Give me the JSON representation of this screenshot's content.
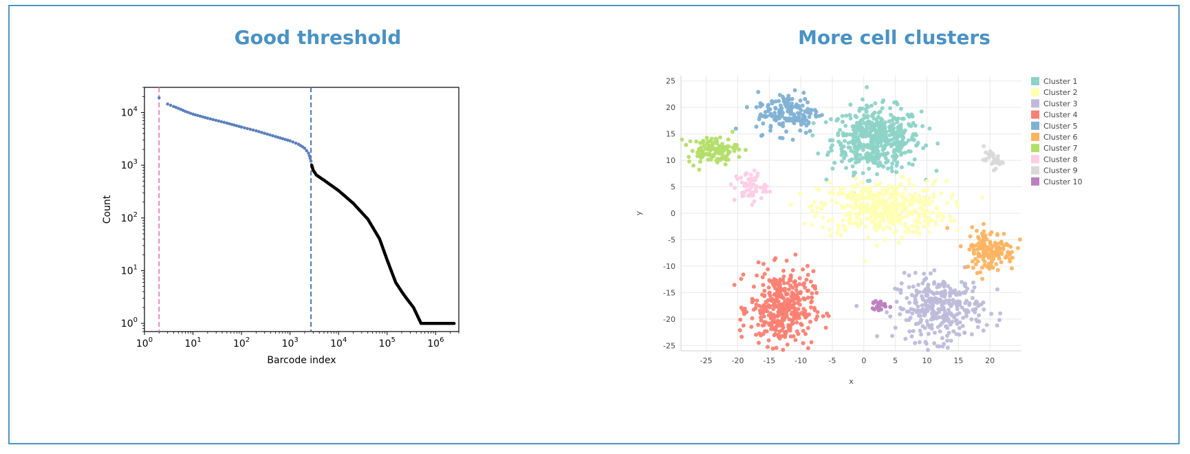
{
  "panels": {
    "left_title": "Good threshold",
    "right_title": "More cell clusters"
  },
  "colors": {
    "frame": "#4d94c4",
    "title": "#4a92c4",
    "cell_barcodes": "#5b80bd",
    "background_barcodes": "#000000",
    "left_threshold_line": "#e67fb5",
    "right_threshold_line": "#3b6ea5"
  },
  "chart_data": [
    {
      "type": "scatter",
      "title": "Good threshold",
      "xlabel": "Barcode index",
      "ylabel": "Count",
      "xscale": "log",
      "yscale": "log",
      "xlim": [
        1,
        3000000
      ],
      "ylim": [
        0.7,
        30000
      ],
      "x_ticks": [
        {
          "base": "10",
          "exp": "0",
          "value": 1
        },
        {
          "base": "10",
          "exp": "1",
          "value": 10
        },
        {
          "base": "10",
          "exp": "2",
          "value": 100
        },
        {
          "base": "10",
          "exp": "3",
          "value": 1000
        },
        {
          "base": "10",
          "exp": "4",
          "value": 10000
        },
        {
          "base": "10",
          "exp": "5",
          "value": 100000
        },
        {
          "base": "10",
          "exp": "6",
          "value": 1000000
        }
      ],
      "y_ticks": [
        {
          "base": "10",
          "exp": "0",
          "value": 1
        },
        {
          "base": "10",
          "exp": "1",
          "value": 10
        },
        {
          "base": "10",
          "exp": "2",
          "value": 100
        },
        {
          "base": "10",
          "exp": "3",
          "value": 1000
        },
        {
          "base": "10",
          "exp": "4",
          "value": 10000
        }
      ],
      "thresholds": [
        {
          "x": 2,
          "style": "dashed",
          "color": "#e67fb5"
        },
        {
          "x": 2700,
          "style": "dashed",
          "color": "#3b6ea5"
        }
      ],
      "series": [
        {
          "color": "#5b80bd",
          "points": [
            [
              2,
              19000
            ],
            [
              3,
              14500
            ],
            [
              4,
              13000
            ],
            [
              5,
              12000
            ],
            [
              7,
              10500
            ],
            [
              10,
              9300
            ],
            [
              20,
              7800
            ],
            [
              50,
              6300
            ],
            [
              100,
              5300
            ],
            [
              200,
              4500
            ],
            [
              500,
              3500
            ],
            [
              1000,
              2900
            ],
            [
              1500,
              2500
            ],
            [
              2000,
              2100
            ],
            [
              2400,
              1700
            ],
            [
              2700,
              1200
            ]
          ]
        },
        {
          "color": "#000000",
          "points": [
            [
              2800,
              1000
            ],
            [
              3000,
              800
            ],
            [
              3500,
              650
            ],
            [
              5000,
              520
            ],
            [
              10000,
              330
            ],
            [
              20000,
              190
            ],
            [
              40000,
              95
            ],
            [
              70000,
              40
            ],
            [
              100000,
              16
            ],
            [
              150000,
              6
            ],
            [
              200000,
              4
            ],
            [
              250000,
              3
            ],
            [
              350000,
              2
            ],
            [
              500000,
              1
            ],
            [
              2400000,
              1
            ]
          ]
        }
      ]
    },
    {
      "type": "scatter",
      "xlabel": "x",
      "ylabel": "y",
      "xlim": [
        -29,
        25
      ],
      "ylim": [
        -26,
        26
      ],
      "x_ticks": [
        -25,
        -20,
        -15,
        -10,
        -5,
        0,
        5,
        10,
        15,
        20
      ],
      "y_ticks": [
        25,
        20,
        15,
        10,
        5,
        0,
        -5,
        -10,
        -15,
        -20,
        -25
      ],
      "grid": true,
      "legend_position": "top-right",
      "series": [
        {
          "name": "Cluster 1",
          "color": "#8dd3c7",
          "center": [
            2,
            14
          ],
          "spread": [
            7,
            6
          ],
          "count": 480
        },
        {
          "name": "Cluster 2",
          "color": "#ffffb3",
          "center": [
            3,
            1
          ],
          "spread": [
            10,
            5
          ],
          "count": 450
        },
        {
          "name": "Cluster 3",
          "color": "#bebada",
          "center": [
            12,
            -18
          ],
          "spread": [
            7,
            6
          ],
          "count": 320
        },
        {
          "name": "Cluster 4",
          "color": "#fb8072",
          "center": [
            -13,
            -18
          ],
          "spread": [
            5,
            7
          ],
          "count": 380
        },
        {
          "name": "Cluster 5",
          "color": "#80b1d3",
          "center": [
            -12,
            19
          ],
          "spread": [
            5,
            4
          ],
          "count": 150
        },
        {
          "name": "Cluster 6",
          "color": "#fdb462",
          "center": [
            20,
            -7
          ],
          "spread": [
            4,
            4
          ],
          "count": 150
        },
        {
          "name": "Cluster 7",
          "color": "#b3de69",
          "center": [
            -24,
            12
          ],
          "spread": [
            4,
            2.5
          ],
          "count": 110
        },
        {
          "name": "Cluster 8",
          "color": "#fccde5",
          "center": [
            -18,
            5
          ],
          "spread": [
            2.5,
            3
          ],
          "count": 60
        },
        {
          "name": "Cluster 9",
          "color": "#d9d9d9",
          "center": [
            20.5,
            10
          ],
          "spread": [
            1.5,
            1.5
          ],
          "count": 30
        },
        {
          "name": "Cluster 10",
          "color": "#bc80bd",
          "center": [
            2.5,
            -17.5
          ],
          "spread": [
            1.2,
            1
          ],
          "count": 20
        }
      ]
    }
  ]
}
